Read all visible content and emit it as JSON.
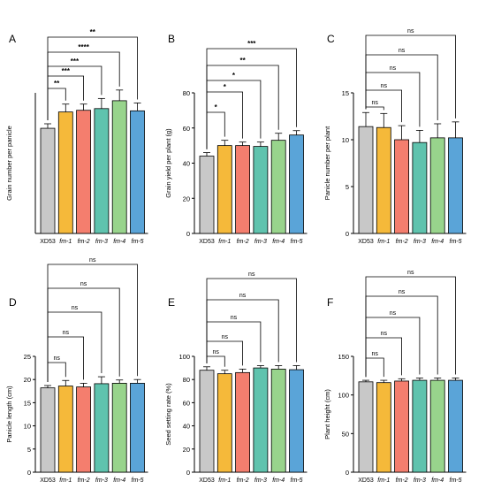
{
  "chart_data": [
    {
      "panel": "A",
      "type": "bar",
      "ylabel": "Grain number per panicle",
      "categories": [
        "XD53",
        "fm-1",
        "fm-2",
        "fm-3",
        "fm-4",
        "fm-5"
      ],
      "values": [
        187,
        216,
        219,
        222,
        236,
        218
      ],
      "errors": [
        8,
        14,
        11,
        18,
        19,
        14
      ],
      "ylim": [
        0,
        250
      ],
      "yticks": [],
      "significance": [
        "**",
        "***",
        "***",
        "****",
        "**"
      ]
    },
    {
      "panel": "B",
      "type": "bar",
      "ylabel": "Grain yield per plant (g)",
      "categories": [
        "XD53",
        "fm-1",
        "fm-2",
        "fm-3",
        "fm-4",
        "fm-5"
      ],
      "values": [
        44,
        50,
        50,
        49.5,
        53,
        56
      ],
      "errors": [
        2,
        3,
        2,
        2.5,
        4,
        2.5
      ],
      "ylim": [
        0,
        80
      ],
      "yticks": [
        "0",
        "20",
        "40",
        "60",
        "80"
      ],
      "significance": [
        "*",
        "*",
        "*",
        "**",
        "***"
      ]
    },
    {
      "panel": "C",
      "type": "bar",
      "ylabel": "Panicle number per plant",
      "categories": [
        "XD53",
        "fm-1",
        "fm-2",
        "fm-3",
        "fm-4",
        "fm-5"
      ],
      "values": [
        11.4,
        11.3,
        10,
        9.7,
        10.2,
        10.2
      ],
      "errors": [
        1.5,
        1.5,
        1.5,
        1.3,
        1.5,
        1.7
      ],
      "ylim": [
        0,
        15
      ],
      "yticks": [
        "0",
        "5",
        "10",
        "15"
      ],
      "significance": [
        "ns",
        "ns",
        "ns",
        "ns",
        "ns"
      ]
    },
    {
      "panel": "D",
      "type": "bar",
      "ylabel": "Panicle length (cm)",
      "categories": [
        "XD53",
        "fm-1",
        "fm-2",
        "fm-3",
        "fm-4",
        "fm-5"
      ],
      "values": [
        18.2,
        18.6,
        18.4,
        19.1,
        19.2,
        19.2
      ],
      "errors": [
        0.5,
        1.2,
        0.8,
        1.5,
        0.7,
        0.8
      ],
      "ylim": [
        0,
        25
      ],
      "yticks": [
        "0",
        "5",
        "10",
        "15",
        "20",
        "25"
      ],
      "significance": [
        "ns",
        "ns",
        "ns",
        "ns",
        "ns"
      ]
    },
    {
      "panel": "E",
      "type": "bar",
      "ylabel": "Seed setting rate (%)",
      "categories": [
        "XD53",
        "fm-1",
        "fm-2",
        "fm-3",
        "fm-4",
        "fm-5"
      ],
      "values": [
        88,
        85,
        86,
        90,
        89,
        88.5
      ],
      "errors": [
        3,
        3,
        3,
        2,
        3,
        3.5
      ],
      "ylim": [
        0,
        100
      ],
      "yticks": [
        "0",
        "20",
        "40",
        "60",
        "80",
        "100"
      ],
      "significance": [
        "ns",
        "ns",
        "ns",
        "ns",
        "ns"
      ]
    },
    {
      "panel": "F",
      "type": "bar",
      "ylabel": "Plant height (cm)",
      "categories": [
        "XD53",
        "fm-1",
        "fm-2",
        "fm-3",
        "fm-4",
        "fm-5"
      ],
      "values": [
        117,
        116,
        118,
        119,
        119,
        119
      ],
      "errors": [
        2,
        3,
        3,
        3,
        3,
        3
      ],
      "ylim": [
        0,
        150
      ],
      "yticks": [
        "0",
        "50",
        "100",
        "150"
      ],
      "significance": [
        "ns",
        "ns",
        "ns",
        "ns",
        "ns"
      ]
    }
  ],
  "bar_colors": [
    "#c8c8c8",
    "#f5b93a",
    "#f47e6e",
    "#5fc3ae",
    "#98d48c",
    "#5aa4d8"
  ],
  "bar_outline_color": "#000000"
}
